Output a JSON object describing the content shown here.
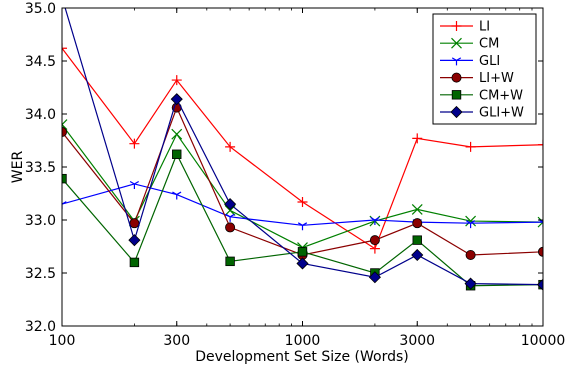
{
  "chart_data": {
    "type": "line",
    "xlabel": "Development Set Size (Words)",
    "ylabel": "WER",
    "xscale": "log",
    "xlim": [
      100,
      10000
    ],
    "ylim": [
      32.0,
      35.0
    ],
    "x_tick_values": [
      100,
      300,
      1000,
      3000,
      10000
    ],
    "x_tick_labels": [
      "100",
      "300",
      "1000",
      "3000",
      "10000"
    ],
    "y_tick_values": [
      32.0,
      32.5,
      33.0,
      33.5,
      34.0,
      34.5,
      35.0
    ],
    "y_tick_labels": [
      "32.0",
      "32.5",
      "33.0",
      "33.5",
      "34.0",
      "34.5",
      "35.0"
    ],
    "legend_position": "top-right",
    "grid": false,
    "x": [
      100,
      200,
      300,
      500,
      1000,
      2000,
      3000,
      5000,
      10000
    ],
    "series": [
      {
        "name": "LI",
        "color": "#ff0000",
        "marker": "plus",
        "filled": false,
        "values": [
          34.62,
          33.72,
          34.32,
          33.69,
          33.17,
          32.73,
          33.77,
          33.69,
          33.71
        ]
      },
      {
        "name": "CM",
        "color": "#008000",
        "marker": "x",
        "filled": false,
        "values": [
          33.9,
          32.99,
          33.81,
          33.09,
          32.74,
          32.99,
          33.1,
          32.99,
          32.98
        ]
      },
      {
        "name": "GLI",
        "color": "#0000ff",
        "marker": "tri",
        "filled": false,
        "values": [
          33.15,
          33.34,
          33.24,
          33.03,
          32.95,
          33.0,
          32.98,
          32.97,
          32.98
        ]
      },
      {
        "name": "LI+W",
        "color": "#8b0000",
        "marker": "circle",
        "filled": true,
        "values": [
          33.83,
          32.97,
          34.06,
          32.93,
          32.67,
          32.81,
          32.97,
          32.67,
          32.7
        ]
      },
      {
        "name": "CM+W",
        "color": "#006400",
        "marker": "square",
        "filled": true,
        "values": [
          33.39,
          32.6,
          33.62,
          32.61,
          32.7,
          32.5,
          32.81,
          32.38,
          32.39
        ]
      },
      {
        "name": "GLI+W",
        "color": "#00008b",
        "marker": "diamond",
        "filled": true,
        "values": [
          35.1,
          32.81,
          34.14,
          33.15,
          32.59,
          32.46,
          32.67,
          32.4,
          32.39
        ]
      }
    ]
  }
}
